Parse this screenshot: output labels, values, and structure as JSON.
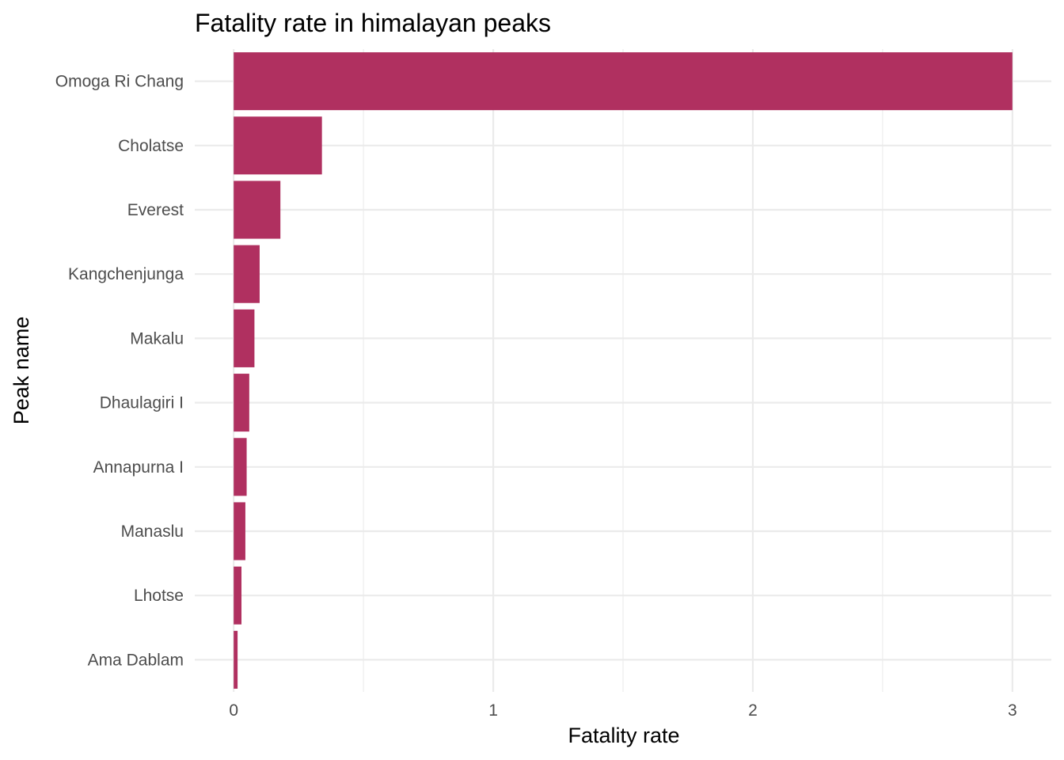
{
  "chart_data": {
    "type": "bar",
    "orientation": "horizontal",
    "title": "Fatality rate in himalayan peaks",
    "xlabel": "Fatality rate",
    "ylabel": "Peak name",
    "categories": [
      "Omoga Ri Chang",
      "Cholatse",
      "Everest",
      "Kangchenjunga",
      "Makalu",
      "Dhaulagiri I",
      "Annapurna I",
      "Manaslu",
      "Lhotse",
      "Ama Dablam"
    ],
    "values": [
      3.0,
      0.34,
      0.18,
      0.1,
      0.08,
      0.06,
      0.05,
      0.045,
      0.03,
      0.015
    ],
    "xlim": [
      -0.15,
      3.15
    ],
    "xticks": [
      0,
      1,
      2,
      3
    ],
    "xtick_labels": [
      "0",
      "1",
      "2",
      "3"
    ],
    "grid": true,
    "legend": "none",
    "bar_color": "#b03060"
  }
}
